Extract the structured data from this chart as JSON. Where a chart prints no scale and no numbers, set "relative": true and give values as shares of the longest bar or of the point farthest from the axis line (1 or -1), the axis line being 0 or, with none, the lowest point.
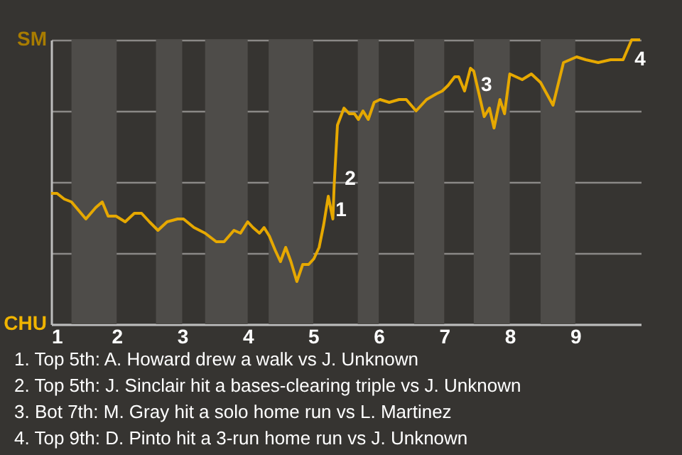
{
  "chart_data": {
    "type": "line",
    "relative": true,
    "x": [
      1.0,
      1.09,
      1.2,
      1.31,
      1.42,
      1.53,
      1.68,
      1.78,
      1.87,
      1.99,
      2.13,
      2.27,
      2.38,
      2.5,
      2.63,
      2.77,
      2.93,
      3.02,
      3.18,
      3.35,
      3.52,
      3.64,
      3.79,
      3.89,
      4.0,
      4.08,
      4.18,
      4.25,
      4.33,
      4.42,
      4.5,
      4.58,
      4.66,
      4.75,
      4.84,
      4.93,
      5.01,
      5.09,
      5.16,
      5.23,
      5.3,
      5.32,
      5.37,
      5.47,
      5.55,
      5.63,
      5.69,
      5.76,
      5.84,
      5.93,
      6.02,
      6.16,
      6.31,
      6.42,
      6.57,
      6.73,
      6.88,
      6.97,
      7.06,
      7.16,
      7.22,
      7.31,
      7.4,
      7.45,
      7.52,
      7.61,
      7.69,
      7.76,
      7.85,
      7.92,
      8.0,
      8.19,
      8.33,
      8.47,
      8.66,
      8.82,
      9.02,
      9.16,
      9.35,
      9.54,
      9.73,
      9.86,
      9.99
    ],
    "series": [
      {
        "color": "#e6a800",
        "values": [
          0.46,
          0.46,
          0.44,
          0.43,
          0.4,
          0.37,
          0.41,
          0.43,
          0.38,
          0.38,
          0.36,
          0.39,
          0.39,
          0.36,
          0.33,
          0.36,
          0.37,
          0.37,
          0.34,
          0.32,
          0.29,
          0.29,
          0.33,
          0.32,
          0.36,
          0.34,
          0.32,
          0.34,
          0.31,
          0.26,
          0.22,
          0.27,
          0.22,
          0.15,
          0.21,
          0.21,
          0.23,
          0.27,
          0.35,
          0.45,
          0.37,
          0.49,
          0.7,
          0.76,
          0.74,
          0.74,
          0.72,
          0.75,
          0.72,
          0.78,
          0.79,
          0.78,
          0.79,
          0.79,
          0.75,
          0.79,
          0.81,
          0.82,
          0.84,
          0.87,
          0.87,
          0.82,
          0.9,
          0.89,
          0.82,
          0.73,
          0.76,
          0.69,
          0.79,
          0.74,
          0.88,
          0.86,
          0.88,
          0.85,
          0.77,
          0.92,
          0.94,
          0.93,
          0.92,
          0.93,
          0.93,
          1,
          1
        ]
      }
    ],
    "xlim": [
      1,
      10
    ],
    "xticks": [
      1,
      2,
      3,
      4,
      5,
      6,
      7,
      8,
      9
    ],
    "grid": "y",
    "bands": [
      {
        "axis": "x",
        "from": 1.31,
        "to": 2,
        "color": "#4e4c49"
      },
      {
        "axis": "x",
        "from": 2.6,
        "to": 3,
        "color": "#4e4c49"
      },
      {
        "axis": "x",
        "from": 3.35,
        "to": 4,
        "color": "#4e4c49"
      },
      {
        "axis": "x",
        "from": 4.32,
        "to": 5,
        "color": "#4e4c49"
      },
      {
        "axis": "x",
        "from": 5.68,
        "to": 6,
        "color": "#4e4c49"
      },
      {
        "axis": "x",
        "from": 6.54,
        "to": 7,
        "color": "#4e4c49"
      },
      {
        "axis": "x",
        "from": 7.45,
        "to": 8,
        "color": "#4e4c49"
      },
      {
        "axis": "x",
        "from": 8.47,
        "to": 9,
        "color": "#4e4c49"
      }
    ],
    "annotations": [
      {
        "text": "1",
        "x": 5.23,
        "y": 0.45
      },
      {
        "text": "2",
        "x": 5.37,
        "y": 0.56
      },
      {
        "text": "3",
        "x": 7.45,
        "y": 0.89
      },
      {
        "text": "4",
        "x": 9.99,
        "y": 1
      },
      "SM",
      "CHU",
      "1. Top 5th: A. Howard drew a walk vs J. Unknown",
      "2. Top 5th: J. Sinclair hit a bases-clearing triple vs J. Unknown",
      "3. Bot 7th: M. Gray hit a solo home run vs L. Martinez",
      "4. Top 9th: D. Pinto hit a 3-run home run vs J. Unknown"
    ]
  }
}
